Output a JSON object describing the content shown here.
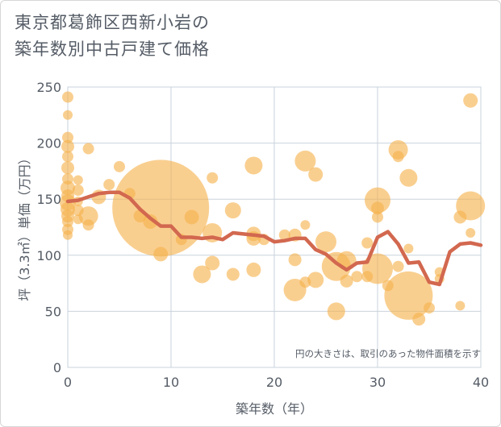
{
  "chart_data": {
    "type": "scatter",
    "title_lines": [
      "東京都葛飾区西新小岩の",
      "築年数別中古戸建て価格"
    ],
    "xlabel": "築年数（年）",
    "ylabel": "坪（3.3㎡）単価（万円）",
    "xlim": [
      0,
      40
    ],
    "ylim": [
      0,
      250
    ],
    "xticks": [
      0,
      10,
      20,
      30,
      40
    ],
    "yticks": [
      0,
      50,
      100,
      150,
      200,
      250
    ],
    "grid": true,
    "note": "円の大きさは、取引のあった物件面積を示す",
    "colors": {
      "bubble": "#f5b24c",
      "line": "#d2684f",
      "grid": "#c9d3dc"
    },
    "bubbles": [
      {
        "x": 0,
        "y": 241,
        "s": 7
      },
      {
        "x": 0,
        "y": 225,
        "s": 6
      },
      {
        "x": 0,
        "y": 205,
        "s": 7
      },
      {
        "x": 0,
        "y": 197,
        "s": 8
      },
      {
        "x": 0,
        "y": 188,
        "s": 7
      },
      {
        "x": 0,
        "y": 178,
        "s": 8
      },
      {
        "x": 0,
        "y": 168,
        "s": 7
      },
      {
        "x": 0,
        "y": 160,
        "s": 9
      },
      {
        "x": 0,
        "y": 153,
        "s": 8
      },
      {
        "x": 0,
        "y": 147,
        "s": 10
      },
      {
        "x": 0,
        "y": 141,
        "s": 9
      },
      {
        "x": 0,
        "y": 135,
        "s": 8
      },
      {
        "x": 0,
        "y": 130,
        "s": 7
      },
      {
        "x": 0,
        "y": 123,
        "s": 7
      },
      {
        "x": 0,
        "y": 118,
        "s": 6
      },
      {
        "x": 1,
        "y": 167,
        "s": 6
      },
      {
        "x": 1,
        "y": 158,
        "s": 7
      },
      {
        "x": 1,
        "y": 148,
        "s": 6
      },
      {
        "x": 1,
        "y": 140,
        "s": 7
      },
      {
        "x": 1,
        "y": 132,
        "s": 6
      },
      {
        "x": 2,
        "y": 195,
        "s": 7
      },
      {
        "x": 2,
        "y": 135,
        "s": 12
      },
      {
        "x": 2,
        "y": 127,
        "s": 7
      },
      {
        "x": 3,
        "y": 152,
        "s": 9
      },
      {
        "x": 4,
        "y": 163,
        "s": 7
      },
      {
        "x": 5,
        "y": 179,
        "s": 7
      },
      {
        "x": 6,
        "y": 155,
        "s": 7
      },
      {
        "x": 7,
        "y": 135,
        "s": 8
      },
      {
        "x": 8,
        "y": 130,
        "s": 9
      },
      {
        "x": 9,
        "y": 142,
        "s": 60
      },
      {
        "x": 9,
        "y": 101,
        "s": 9
      },
      {
        "x": 11,
        "y": 114,
        "s": 7
      },
      {
        "x": 12,
        "y": 134,
        "s": 9
      },
      {
        "x": 13,
        "y": 83,
        "s": 11
      },
      {
        "x": 14,
        "y": 169,
        "s": 7
      },
      {
        "x": 14,
        "y": 120,
        "s": 12
      },
      {
        "x": 14,
        "y": 93,
        "s": 9
      },
      {
        "x": 16,
        "y": 140,
        "s": 10
      },
      {
        "x": 16,
        "y": 83,
        "s": 8
      },
      {
        "x": 18,
        "y": 180,
        "s": 11
      },
      {
        "x": 18,
        "y": 119,
        "s": 9
      },
      {
        "x": 18,
        "y": 115,
        "s": 9
      },
      {
        "x": 18,
        "y": 87,
        "s": 9
      },
      {
        "x": 19,
        "y": 114,
        "s": 7
      },
      {
        "x": 21,
        "y": 118,
        "s": 7
      },
      {
        "x": 22,
        "y": 118,
        "s": 8
      },
      {
        "x": 22,
        "y": 96,
        "s": 8
      },
      {
        "x": 22,
        "y": 69,
        "s": 14
      },
      {
        "x": 23,
        "y": 184,
        "s": 13
      },
      {
        "x": 23,
        "y": 127,
        "s": 6
      },
      {
        "x": 23,
        "y": 76,
        "s": 7
      },
      {
        "x": 24,
        "y": 172,
        "s": 9
      },
      {
        "x": 24,
        "y": 78,
        "s": 10
      },
      {
        "x": 25,
        "y": 112,
        "s": 13
      },
      {
        "x": 26,
        "y": 90,
        "s": 18
      },
      {
        "x": 26,
        "y": 50,
        "s": 11
      },
      {
        "x": 27,
        "y": 95,
        "s": 12
      },
      {
        "x": 27,
        "y": 77,
        "s": 8
      },
      {
        "x": 28,
        "y": 81,
        "s": 7
      },
      {
        "x": 29,
        "y": 111,
        "s": 7
      },
      {
        "x": 29,
        "y": 81,
        "s": 7
      },
      {
        "x": 30,
        "y": 149,
        "s": 16
      },
      {
        "x": 30,
        "y": 142,
        "s": 8
      },
      {
        "x": 30,
        "y": 134,
        "s": 7
      },
      {
        "x": 30,
        "y": 88,
        "s": 19
      },
      {
        "x": 31,
        "y": 73,
        "s": 7
      },
      {
        "x": 32,
        "y": 194,
        "s": 12
      },
      {
        "x": 32,
        "y": 188,
        "s": 7
      },
      {
        "x": 32,
        "y": 90,
        "s": 7
      },
      {
        "x": 33,
        "y": 169,
        "s": 11
      },
      {
        "x": 33,
        "y": 106,
        "s": 6
      },
      {
        "x": 33,
        "y": 64,
        "s": 30
      },
      {
        "x": 34,
        "y": 43,
        "s": 8
      },
      {
        "x": 35,
        "y": 53,
        "s": 7
      },
      {
        "x": 36,
        "y": 85,
        "s": 6
      },
      {
        "x": 36,
        "y": 79,
        "s": 6
      },
      {
        "x": 38,
        "y": 134,
        "s": 8
      },
      {
        "x": 38,
        "y": 55,
        "s": 6
      },
      {
        "x": 39,
        "y": 238,
        "s": 9
      },
      {
        "x": 39,
        "y": 144,
        "s": 18
      },
      {
        "x": 39,
        "y": 120,
        "s": 6
      }
    ],
    "line": {
      "x": [
        0,
        1,
        2,
        3,
        4,
        5,
        6,
        7,
        8,
        9,
        10,
        11,
        12,
        13,
        14,
        15,
        16,
        17,
        18,
        19,
        20,
        21,
        22,
        23,
        24,
        25,
        26,
        27,
        28,
        29,
        30,
        31,
        32,
        33,
        34,
        35,
        36,
        37,
        38,
        39,
        40
      ],
      "y": [
        148,
        149,
        152,
        155,
        156,
        156,
        151,
        141,
        133,
        126,
        126,
        116,
        116,
        115,
        116,
        114,
        120,
        119,
        118,
        117,
        112,
        113,
        115,
        115,
        105,
        101,
        93,
        87,
        93,
        94,
        116,
        121,
        110,
        93,
        94,
        76,
        74,
        103,
        110,
        111,
        109
      ]
    }
  }
}
